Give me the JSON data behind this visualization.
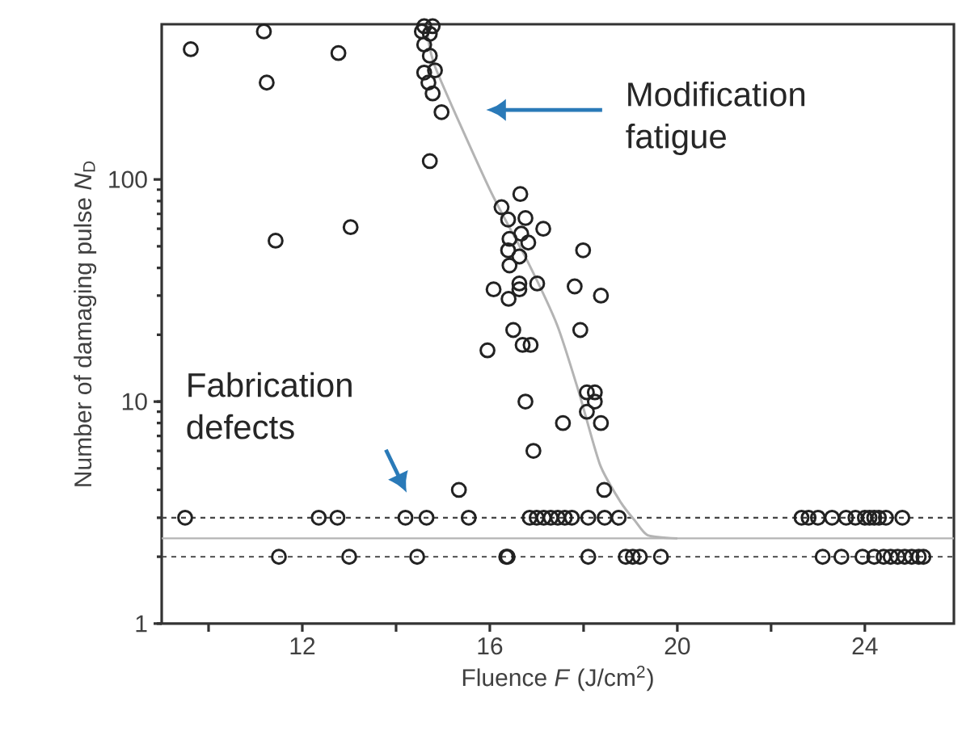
{
  "chart_data": {
    "type": "scatter",
    "xlabel": "Fluence *F* (J/cm$^{2}$)",
    "ylabel": "Number of damaging pulse *N*$_{D}$",
    "log": "y",
    "xlim": [
      9,
      25.9
    ],
    "ylim": [
      1,
      500
    ],
    "xticks": [
      {
        "value": 10,
        "label": null
      },
      12,
      {
        "value": 14,
        "label": null
      },
      16,
      {
        "value": 18,
        "label": null
      },
      20,
      {
        "value": 22,
        "label": null
      },
      24
    ],
    "yticks": [
      1,
      10,
      100
    ],
    "grid": false,
    "series": [
      {
        "color": "#222222",
        "marker": "circle",
        "x": [
          9.62,
          11.18,
          11.24,
          12.77,
          11.43,
          13.03,
          14.55,
          14.72,
          14.6,
          14.72,
          14.6,
          14.83,
          14.69,
          14.78,
          14.97,
          14.72,
          14.6,
          14.78,
          16.65,
          16.25,
          16.39,
          16.76,
          17.14,
          16.42,
          16.67,
          16.82,
          16.39,
          16.63,
          17.99,
          16.42,
          16.08,
          16.4,
          16.63,
          16.63,
          17.01,
          17.81,
          18.37,
          16.5,
          17.93,
          16.7,
          16.87,
          15.95,
          18.07,
          18.24,
          18.24,
          16.76,
          18.07,
          17.56,
          18.37,
          16.93,
          15.34,
          18.44,
          9.5,
          12.35,
          12.75,
          14.2,
          14.65,
          15.55,
          16.85,
          17.0,
          17.15,
          17.3,
          17.45,
          17.6,
          17.75,
          18.1,
          18.45,
          18.75,
          22.65,
          22.8,
          23.0,
          23.3,
          23.6,
          23.8,
          24.0,
          24.1,
          24.2,
          24.3,
          24.45,
          24.8,
          11.5,
          13.0,
          14.45,
          16.35,
          16.38,
          18.1,
          18.9,
          19.05,
          19.2,
          19.65,
          23.1,
          23.5,
          23.95,
          24.2,
          24.4,
          24.55,
          24.7,
          24.85,
          25.0,
          25.15,
          25.25
        ],
        "values": [
          386,
          464,
          273,
          371,
          53,
          61,
          464,
          453,
          405,
          361,
          303,
          310,
          273,
          244,
          201,
          121,
          490,
          490,
          86,
          75,
          66,
          67,
          60,
          54,
          57,
          52,
          48,
          45,
          48,
          41,
          32,
          29,
          34,
          32,
          34,
          33,
          30,
          21,
          21,
          18,
          18,
          17,
          11,
          11,
          10,
          10,
          9,
          8,
          8,
          6,
          4,
          4,
          3,
          3,
          3,
          3,
          3,
          3,
          3,
          3,
          3,
          3,
          3,
          3,
          3,
          3,
          3,
          3,
          3,
          3,
          3,
          3,
          3,
          3,
          3,
          3,
          3,
          3,
          3,
          3,
          2,
          2,
          2,
          2,
          2,
          2,
          2,
          2,
          2,
          2,
          2,
          2,
          2,
          2,
          2,
          2,
          2,
          2,
          2,
          2,
          2
        ]
      },
      {
        "type": "line",
        "color": "#b4b4b4",
        "marker": "none",
        "line_style": "solid",
        "x": [
          14.65,
          14.83,
          16.0,
          16.8,
          17.44,
          17.9,
          18.35,
          18.8,
          19.1,
          19.37,
          20
        ],
        "values": [
          500,
          323,
          90,
          43,
          22,
          11,
          5.2,
          3.5,
          2.9,
          2.5,
          2.42
        ]
      }
    ],
    "ref_lines": [
      {
        "axis": "y",
        "value": 3,
        "color": "#444444",
        "line_style": "dashed"
      },
      {
        "axis": "y",
        "value": 2,
        "color": "#444444",
        "line_style": "dashed"
      },
      {
        "axis": "y",
        "value": 2.42,
        "color": "#b4b4b4",
        "line_style": "solid"
      }
    ],
    "annotations": [
      "Modification fatigue",
      "Fabrication defects"
    ]
  }
}
